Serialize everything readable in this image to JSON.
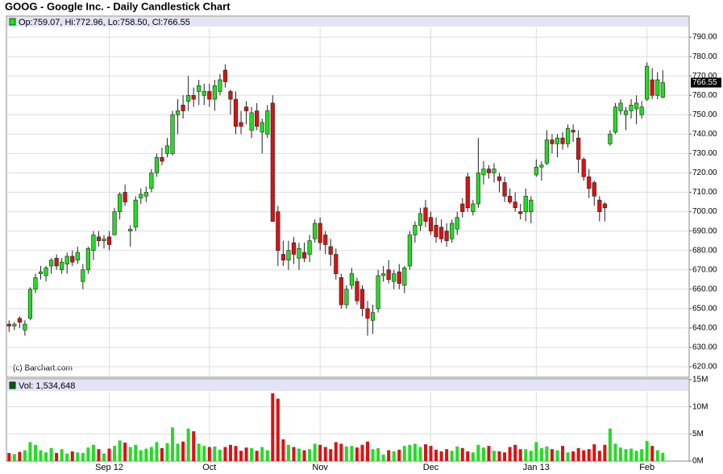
{
  "chart_data": {
    "type": "candlestick",
    "title": "GOOG - Google Inc. - Daily Candlestick Chart",
    "legend_price": "Op:759.07, Hi:772.96, Lo:758.50, Cl:766.55",
    "legend_volume": "Vol: 1,534,648",
    "watermark": "(c) Barchart.com",
    "last_label": "766.55",
    "up_color": "#22dd22",
    "down_color": "#dd1111",
    "grid": true,
    "xlim": [
      -0.5,
      129
    ],
    "xticks": [
      {
        "value": 19,
        "label": "Sep 12"
      },
      {
        "value": 38,
        "label": "Oct"
      },
      {
        "value": 59,
        "label": "Nov"
      },
      {
        "value": 80,
        "label": "Dec"
      },
      {
        "value": 100,
        "label": "Jan 13"
      },
      {
        "value": 121,
        "label": "Feb"
      }
    ],
    "ylim": [
      614.6,
      794.2
    ],
    "yticks": [
      {
        "value": 620,
        "label": "620.00"
      },
      {
        "value": 630,
        "label": "630.00"
      },
      {
        "value": 640,
        "label": "640.00"
      },
      {
        "value": 650,
        "label": "650.00"
      },
      {
        "value": 660,
        "label": "660.00"
      },
      {
        "value": 670,
        "label": "670.00"
      },
      {
        "value": 680,
        "label": "680.00"
      },
      {
        "value": 690,
        "label": "690.00"
      },
      {
        "value": 700,
        "label": "700.00"
      },
      {
        "value": 710,
        "label": "710.00"
      },
      {
        "value": 720,
        "label": "720.00"
      },
      {
        "value": 730,
        "label": "730.00"
      },
      {
        "value": 740,
        "label": "740.00"
      },
      {
        "value": 750,
        "label": "750.00"
      },
      {
        "value": 760,
        "label": "760.00"
      },
      {
        "value": 770,
        "label": "770.00"
      },
      {
        "value": 780,
        "label": "780.00"
      },
      {
        "value": 790,
        "label": "790.00"
      }
    ],
    "open": [
      642,
      641,
      645,
      639,
      645,
      660,
      668,
      667,
      672,
      676,
      670,
      673,
      677,
      675,
      664,
      670,
      680,
      687,
      685,
      687,
      688,
      700,
      710,
      690,
      692,
      707,
      708,
      712,
      720,
      728,
      730,
      730,
      750,
      755,
      757,
      760,
      762,
      760,
      762,
      758,
      762,
      773,
      762,
      758,
      746,
      754,
      742,
      752,
      741,
      740,
      756,
      700,
      678,
      675,
      684,
      676,
      679,
      678,
      686,
      694,
      688,
      682,
      678,
      666,
      652,
      662,
      664,
      660,
      650,
      644,
      650,
      667,
      670,
      664,
      669,
      662,
      672,
      688,
      693,
      702,
      697,
      693,
      692,
      690,
      686,
      691,
      704,
      718,
      700,
      704,
      719,
      722,
      720,
      718,
      715,
      708,
      705,
      700,
      700,
      700,
      719,
      723,
      725,
      737,
      735,
      738,
      735,
      742,
      738,
      727,
      718,
      715,
      706,
      704,
      735,
      741,
      752,
      750,
      752,
      753,
      750,
      758,
      768,
      760,
      759.07
    ],
    "high": [
      644,
      643,
      646,
      644,
      661,
      668,
      672,
      672,
      676,
      678,
      676,
      679,
      680,
      682,
      673,
      682,
      690,
      690,
      688,
      690,
      702,
      710,
      714,
      693,
      708,
      712,
      713,
      722,
      730,
      733,
      738,
      752,
      758,
      760,
      770,
      764,
      768,
      766,
      766,
      768,
      771,
      776,
      763,
      762,
      752,
      757,
      754,
      756,
      748,
      755,
      760,
      703,
      685,
      685,
      687,
      684,
      684,
      688,
      696,
      697,
      690,
      686,
      681,
      668,
      662,
      671,
      666,
      662,
      654,
      652,
      670,
      672,
      675,
      670,
      673,
      672,
      690,
      695,
      702,
      706,
      700,
      697,
      696,
      694,
      696,
      700,
      707,
      720,
      706,
      738,
      726,
      724,
      725,
      720,
      718,
      712,
      710,
      704,
      712,
      708,
      727,
      726,
      742,
      740,
      740,
      741,
      745,
      745,
      742,
      728,
      722,
      716,
      708,
      705,
      742,
      756,
      758,
      754,
      758,
      760,
      757,
      777,
      774,
      772,
      772.96
    ],
    "low": [
      638,
      639,
      640,
      636,
      644,
      658,
      665,
      664,
      668,
      670,
      668,
      668,
      672,
      673,
      660,
      668,
      675,
      682,
      681,
      680,
      688,
      696,
      703,
      682,
      690,
      704,
      705,
      710,
      718,
      724,
      728,
      729,
      740,
      748,
      752,
      754,
      755,
      755,
      754,
      752,
      760,
      764,
      750,
      740,
      740,
      745,
      738,
      742,
      730,
      738,
      695,
      672,
      672,
      670,
      673,
      670,
      674,
      674,
      684,
      680,
      678,
      672,
      665,
      650,
      650,
      660,
      652,
      646,
      636,
      637,
      648,
      664,
      663,
      660,
      660,
      658,
      670,
      684,
      690,
      692,
      688,
      684,
      684,
      682,
      684,
      688,
      697,
      700,
      698,
      702,
      714,
      717,
      715,
      710,
      705,
      704,
      700,
      696,
      695,
      694,
      718,
      716,
      724,
      730,
      728,
      732,
      733,
      736,
      720,
      716,
      707,
      703,
      695,
      695,
      734,
      740,
      750,
      742,
      748,
      745,
      748,
      757,
      758,
      758,
      758.5
    ],
    "close": [
      641,
      642,
      643,
      642,
      660,
      666,
      669,
      671,
      675,
      672,
      674,
      677,
      674,
      679,
      670,
      681,
      688,
      685,
      686,
      683,
      700,
      709,
      705,
      691,
      706,
      709,
      710,
      720,
      728,
      726,
      734,
      750,
      752,
      752,
      760,
      758,
      765,
      762,
      758,
      765,
      768,
      767,
      758,
      744,
      744,
      752,
      751,
      744,
      746,
      752,
      695,
      680,
      675,
      680,
      678,
      681,
      676,
      685,
      694,
      684,
      683,
      678,
      668,
      652,
      660,
      668,
      654,
      650,
      645,
      648,
      667,
      668,
      665,
      668,
      663,
      671,
      688,
      693,
      699,
      695,
      690,
      687,
      686,
      685,
      694,
      697,
      700,
      702,
      704,
      720,
      722,
      720,
      722,
      716,
      708,
      705,
      702,
      699,
      708,
      706,
      723,
      724,
      737,
      735,
      738,
      735,
      743,
      741,
      727,
      718,
      712,
      708,
      700,
      702,
      740,
      754,
      756,
      752,
      755,
      756,
      754,
      775,
      760,
      768,
      766.55
    ],
    "volume": {
      "ylim": [
        0,
        15000000
      ],
      "yticks": [
        {
          "value": 0,
          "label": "0M"
        },
        {
          "value": 5000000,
          "label": "5M"
        },
        {
          "value": 10000000,
          "label": "10M"
        },
        {
          "value": 15000000,
          "label": "15M"
        }
      ],
      "values": [
        1500000.0,
        1300000.0,
        1700000.0,
        2000000.0,
        3500000.0,
        3000000.0,
        2000000.0,
        1600000.0,
        2400000.0,
        1500000.0,
        2200000.0,
        1400000.0,
        1800000.0,
        1600000.0,
        1500000.0,
        2500000.0,
        3000000.0,
        2200000.0,
        1400000.0,
        2300000.0,
        2800000.0,
        3800000.0,
        3400000.0,
        2600000.0,
        3000000.0,
        2000000.0,
        2300000.0,
        2600000.0,
        3500000.0,
        2400000.0,
        3300000.0,
        6200000.0,
        3200000.0,
        3600000.0,
        6000000.0,
        5500000.0,
        3200000.0,
        2800000.0,
        2600000.0,
        2700000.0,
        2100000.0,
        2600000.0,
        3000000.0,
        2800000.0,
        1900000.0,
        2500000.0,
        2400000.0,
        1900000.0,
        2600000.0,
        2000000.0,
        12500000.0,
        11500000.0,
        4000000.0,
        3000000.0,
        2600000.0,
        2300000.0,
        2000000.0,
        2200000.0,
        3200000.0,
        3000000.0,
        2600000.0,
        2200000.0,
        3500000.0,
        3200000.0,
        2700000.0,
        2800000.0,
        2500000.0,
        3000000.0,
        3600000.0,
        2200000.0,
        2400000.0,
        1200000.0,
        2000000.0,
        1800000.0,
        2100000.0,
        2800000.0,
        3000000.0,
        3200000.0,
        2600000.0,
        3100000.0,
        2800000.0,
        2100000.0,
        1800000.0,
        2200000.0,
        1900000.0,
        2700000.0,
        2400000.0,
        1800000.0,
        1600000.0,
        3000000.0,
        2500000.0,
        2800000.0,
        1900000.0,
        1800000.0,
        1600000.0,
        2600000.0,
        3000000.0,
        2200000.0,
        2200000.0,
        1900000.0,
        3500000.0,
        2400000.0,
        2700000.0,
        2200000.0,
        2000000.0,
        2800000.0,
        1600000.0,
        1800000.0,
        2400000.0,
        2000000.0,
        2200000.0,
        3100000.0,
        1900000.0,
        3000000.0,
        6000000.0,
        3200000.0,
        2500000.0,
        2200000.0,
        2300000.0,
        1900000.0,
        2200000.0,
        3700000.0,
        2800000.0,
        2000000.0,
        1534648
      ]
    }
  }
}
